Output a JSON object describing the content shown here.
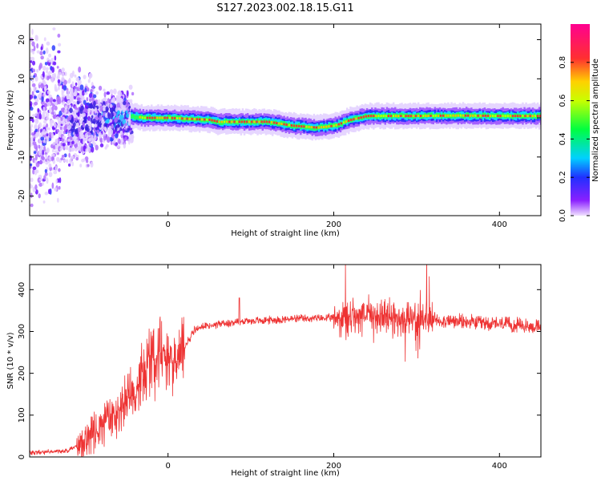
{
  "figure": {
    "title": "S127.2023.002.18.15.G11"
  },
  "chart_data": [
    {
      "type": "heatmap",
      "xlabel": "Height of straight line (km)",
      "ylabel": "Frequency (Hz)",
      "xlim": [
        -167,
        450
      ],
      "ylim": [
        -25,
        24
      ],
      "x_ticks": [
        0,
        200,
        400
      ],
      "y_ticks": [
        -20,
        -10,
        0,
        10,
        20
      ],
      "grid": false,
      "colorbar": {
        "label": "Normalized spectral amplitude",
        "range": [
          0,
          1
        ],
        "ticks": [
          0.0,
          0.2,
          0.4,
          0.6,
          0.8
        ],
        "tick_labels": [
          "0.0",
          "0.2",
          "0.4",
          "0.6",
          "0.8"
        ],
        "colormap": "rainbow"
      },
      "ridge": {
        "x": [
          -45,
          -30,
          0,
          50,
          60,
          100,
          120,
          150,
          180,
          200,
          220,
          240,
          260,
          300,
          350,
          400,
          450
        ],
        "frequency": [
          0.5,
          0,
          0,
          -0.5,
          -1,
          -1,
          -1,
          -2,
          -2.5,
          -2,
          -0.5,
          0.5,
          0.5,
          0.5,
          0.6,
          0.5,
          0.5
        ]
      }
    },
    {
      "type": "line",
      "xlabel": "Height of straight line (km)",
      "ylabel": "SNR (10 * v/v)",
      "xlim": [
        -167,
        450
      ],
      "ylim": [
        0,
        460
      ],
      "x_ticks": [
        0,
        200,
        400
      ],
      "y_ticks": [
        0,
        100,
        200,
        300,
        400
      ],
      "grid": false,
      "series": [
        {
          "color": "#ee3333",
          "x": [
            -167,
            -140,
            -120,
            -110,
            -100,
            -80,
            -60,
            -40,
            -30,
            -20,
            -15,
            -10,
            -5,
            0,
            5,
            10,
            15,
            20,
            25,
            30,
            40,
            60,
            80,
            90,
            100,
            150,
            200,
            220,
            240,
            260,
            280,
            300,
            320,
            340,
            360,
            380,
            400,
            420,
            450
          ],
          "y": [
            10,
            12,
            15,
            25,
            40,
            70,
            110,
            160,
            200,
            230,
            245,
            250,
            255,
            250,
            240,
            220,
            240,
            260,
            280,
            300,
            310,
            318,
            322,
            325,
            325,
            330,
            332,
            335,
            338,
            335,
            332,
            330,
            328,
            325,
            322,
            320,
            318,
            315,
            310
          ]
        }
      ]
    }
  ]
}
